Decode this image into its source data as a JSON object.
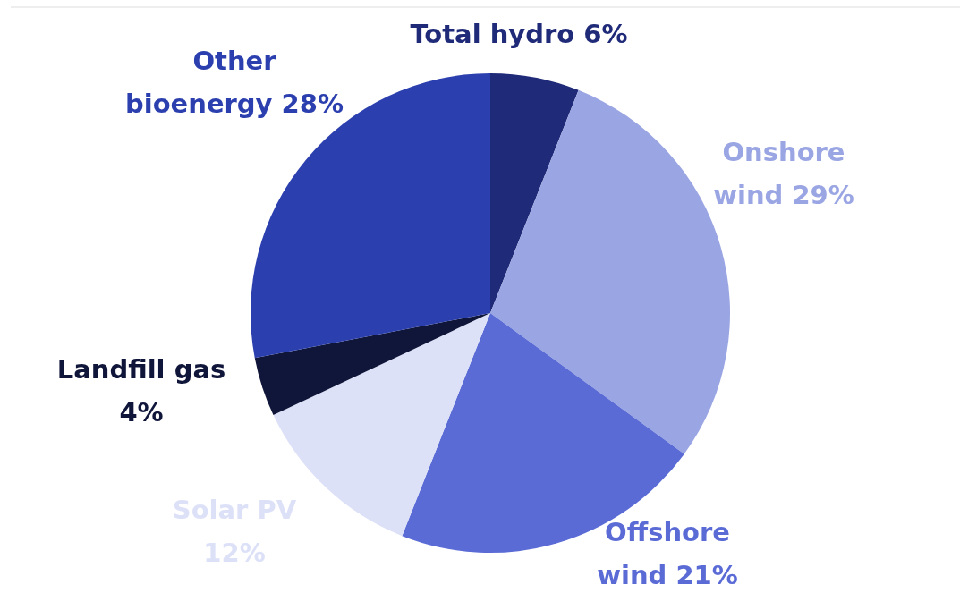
{
  "chart_data": {
    "type": "pie",
    "categories": [
      "Total hydro",
      "Onshore wind",
      "Offshore wind",
      "Solar PV",
      "Landfill gas",
      "Other bioenergy"
    ],
    "values": [
      6,
      29,
      21,
      12,
      4,
      28
    ],
    "value_labels": [
      "6%",
      "29%",
      "21%",
      "12%",
      "4%",
      "28%"
    ],
    "colors": [
      "#1f2a78",
      "#9aa5e3",
      "#5a6bd6",
      "#dde1f8",
      "#10163a",
      "#2b3fae"
    ]
  }
}
